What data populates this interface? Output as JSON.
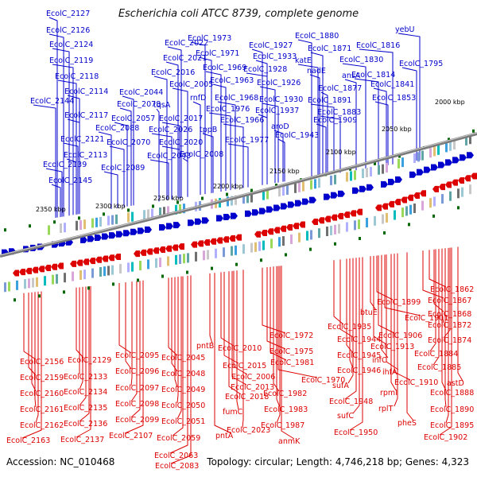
{
  "title": "Escherichia coli ATCC 8739, complete genome",
  "footer": {
    "accession_label": "Accession:",
    "accession": "NC_010468",
    "topology_label": "Topology:",
    "topology": "circular;",
    "length_label": "Length:",
    "length": "4,746,218 bp;",
    "genes_label": "Genes:",
    "genes": "4,323"
  },
  "colors": {
    "forward": "#0000cc",
    "reverse": "#dd0000",
    "backbone": "#808080",
    "tick": "#006600"
  },
  "scale_labels": [
    "2000 kbp",
    "2050 kbp",
    "2100 kbp",
    "2150 kbp",
    "2200 kbp",
    "2250 kbp",
    "2300 kbp",
    "2350 kbp"
  ],
  "top_genes": [
    "EcolC_2127",
    "EcolC_2126",
    "EcolC_2124",
    "EcolC_2119",
    "EcolC_2118",
    "EcolC_2114",
    "EcolC_2144",
    "EcolC_2117",
    "EcolC_2121",
    "EcolC_2113",
    "EcolC_2139",
    "EcolC_2145",
    "EcolC_2078",
    "EcolC_2044",
    "EcolC_2088",
    "EcolC_2057",
    "EcolC_2070",
    "EcolC_2089",
    "EcolC_2022",
    "EcolC_2021",
    "EcolC_2016",
    "EcolC_2005",
    "tqsA",
    "rnfD",
    "EcolC_2017",
    "EcolC_2026",
    "EcolC_2020",
    "EcolC_2043",
    "EcolC_2008",
    "tppB",
    "EcolC_1973",
    "EcolC_1971",
    "EcolC_1969",
    "EcolC_1963",
    "EcolC_1968",
    "EcolC_1976",
    "EcolC_1966",
    "EcolC_1977",
    "EcolC_1927",
    "EcolC_1933",
    "EcolC_1928",
    "EcolC_1926",
    "EcolC_1930",
    "EcolC_1937",
    "aroD",
    "EcolC_1943",
    "EcolC_1880",
    "EcolC_1871",
    "katE",
    "nadE",
    "ansA",
    "EcolC_1877",
    "EcolC_1891",
    "EcolC_1883",
    "EcolC_1909",
    "EcolC_1816",
    "EcolC_1830",
    "EcolC_1814",
    "EcolC_1841",
    "EcolC_1853",
    "yebU",
    "EcolC_1795"
  ],
  "bottom_genes": [
    "EcolC_2156",
    "EcolC_2159",
    "EcolC_2160",
    "EcolC_2161",
    "EcolC_2162",
    "EcolC_2163",
    "EcolC_2129",
    "EcolC_2133",
    "EcolC_2134",
    "EcolC_2135",
    "EcolC_2136",
    "EcolC_2137",
    "EcolC_2095",
    "EcolC_2096",
    "EcolC_2097",
    "EcolC_2098",
    "EcolC_2099",
    "EcolC_2107",
    "EcolC_2045",
    "EcolC_2048",
    "EcolC_2049",
    "EcolC_2050",
    "EcolC_2051",
    "EcolC_2059",
    "EcolC_2063",
    "EcolC_2083",
    "pntB",
    "pntA",
    "EcolC_2010",
    "EcolC_2015",
    "EcolC_2018",
    "EcolC_2013",
    "EcolC_2006",
    "fumC",
    "EcolC_2023",
    "EcolC_1972",
    "EcolC_1975",
    "EcolC_1981",
    "EcolC_1970",
    "EcolC_1982",
    "EcolC_1983",
    "EcolC_1987",
    "anmK",
    "EcolC_1935",
    "EcolC_1944",
    "EcolC_1945",
    "EcolC_1946",
    "sufA",
    "EcolC_1948",
    "sufC",
    "EcolC_1950",
    "btuE",
    "EcolC_1899",
    "EcolC_1901",
    "EcolC_1906",
    "EcolC_1913",
    "infC",
    "ihfA",
    "EcolC_1910",
    "rpmI",
    "rplT",
    "pheS",
    "EcolC_1862",
    "EcolC_1867",
    "EcolC_1868",
    "EcolC_1872",
    "EcolC_1874",
    "EcolC_1884",
    "EcolC_1885",
    "astD",
    "EcolC_1888",
    "EcolC_1890",
    "EcolC_1895",
    "EcolC_1902"
  ]
}
